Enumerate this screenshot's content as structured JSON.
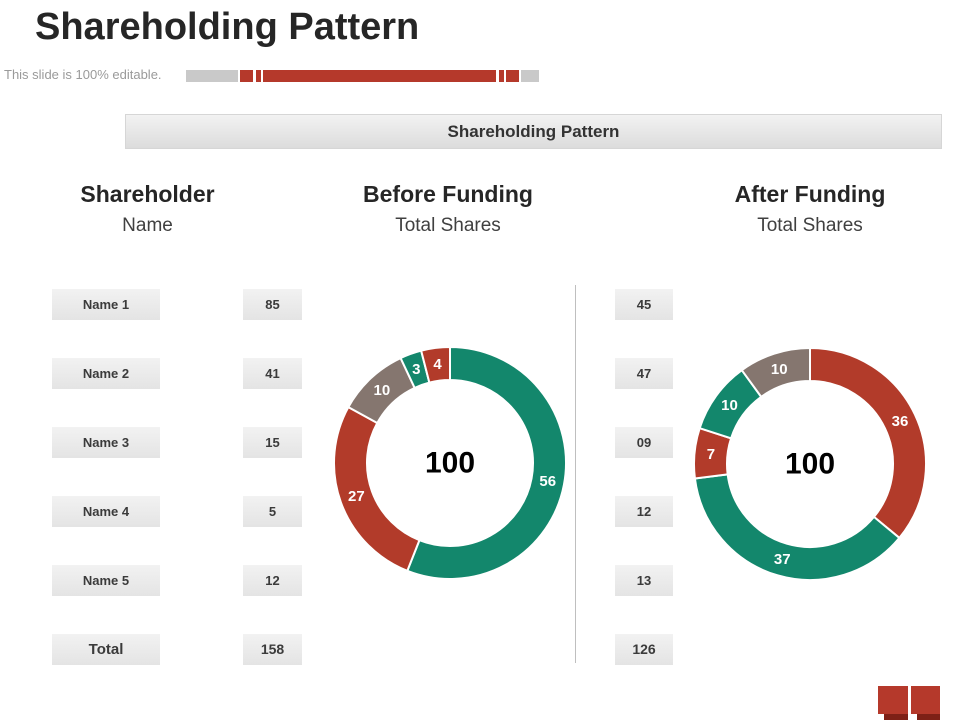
{
  "slide": {
    "title": "Shareholding Pattern",
    "editable_note": "This slide is 100% editable.",
    "banner_title": "Shareholding Pattern"
  },
  "columns": {
    "shareholder": {
      "title": "Shareholder",
      "subtitle": "Name"
    },
    "before": {
      "title": "Before Funding",
      "subtitle": "Total Shares"
    },
    "after": {
      "title": "After Funding",
      "subtitle": "Total Shares"
    }
  },
  "table": {
    "rows": [
      {
        "name": "Name 1",
        "before": "85",
        "after": "45"
      },
      {
        "name": "Name 2",
        "before": "41",
        "after": "47"
      },
      {
        "name": "Name 3",
        "before": "15",
        "after": "09"
      },
      {
        "name": "Name 4",
        "before": "5",
        "after": "12"
      },
      {
        "name": "Name 5",
        "before": "12",
        "after": "13"
      }
    ],
    "total": {
      "name": "Total",
      "before": "158",
      "after": "126"
    }
  },
  "colors": {
    "teal": "#13876c",
    "red": "#b23b2a",
    "gray": "#85766f",
    "accent_red": "#b5392b",
    "accent_dark_red": "#7e2016",
    "bar_gray": "#c9c9c9"
  },
  "chart_data": [
    {
      "type": "pie",
      "subtype": "donut",
      "title": "Before Funding Total Shares",
      "center_label": "100",
      "total": 100,
      "segments": [
        {
          "label": "56",
          "value": 56,
          "color": "#13876c"
        },
        {
          "label": "27",
          "value": 27,
          "color": "#b23b2a"
        },
        {
          "label": "10",
          "value": 10,
          "color": "#85766f"
        },
        {
          "label": "3",
          "value": 3,
          "color": "#13876c"
        },
        {
          "label": "4",
          "value": 4,
          "color": "#b23b2a"
        }
      ]
    },
    {
      "type": "pie",
      "subtype": "donut",
      "title": "After Funding Total Shares",
      "center_label": "100",
      "total": 100,
      "segments": [
        {
          "label": "36",
          "value": 36,
          "color": "#b23b2a"
        },
        {
          "label": "37",
          "value": 37,
          "color": "#13876c"
        },
        {
          "label": "7",
          "value": 7,
          "color": "#b23b2a"
        },
        {
          "label": "10",
          "value": 10,
          "color": "#13876c"
        },
        {
          "label": "10",
          "value": 10,
          "color": "#85766f"
        }
      ]
    }
  ]
}
